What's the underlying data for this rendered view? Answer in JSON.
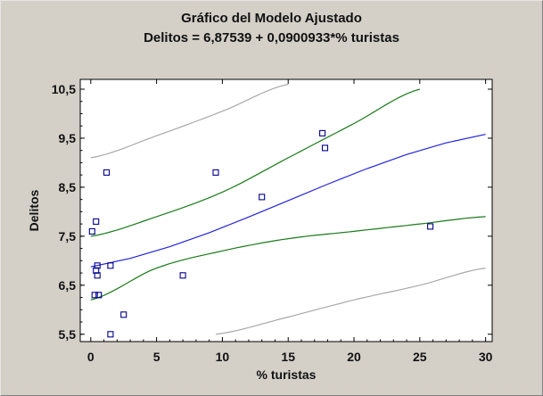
{
  "chart_data": {
    "type": "scatter",
    "title": "Gráfico del Modelo Ajustado",
    "subtitle": "Delitos = 6,87539 + 0,0900933*% turistas",
    "xlabel": "% turistas",
    "ylabel": "Delitos",
    "xlim": [
      -0.8,
      30.5
    ],
    "ylim": [
      5.35,
      10.7
    ],
    "x_ticks": [
      0,
      5,
      10,
      15,
      20,
      25,
      30
    ],
    "x_tick_labels": [
      "0",
      "5",
      "10",
      "15",
      "20",
      "25",
      "30"
    ],
    "y_ticks": [
      5.5,
      6.5,
      7.5,
      8.5,
      9.5,
      10.5
    ],
    "y_tick_labels": [
      "5,5",
      "6,5",
      "7,5",
      "8,5",
      "9,5",
      "10,5"
    ],
    "grid": false,
    "colors": {
      "points": "#00008b",
      "fit": "#2222dd",
      "confidence": "#1a7a1a",
      "prediction": "#a8a8a8",
      "background": "#d4d0c8",
      "plot_background": "#ffffff"
    },
    "points": [
      {
        "x": 0.1,
        "y": 7.6
      },
      {
        "x": 0.3,
        "y": 6.3
      },
      {
        "x": 0.4,
        "y": 7.8
      },
      {
        "x": 0.4,
        "y": 6.8
      },
      {
        "x": 0.5,
        "y": 6.7
      },
      {
        "x": 0.5,
        "y": 6.9
      },
      {
        "x": 0.6,
        "y": 6.3
      },
      {
        "x": 1.2,
        "y": 8.8
      },
      {
        "x": 1.5,
        "y": 6.9
      },
      {
        "x": 1.5,
        "y": 5.5
      },
      {
        "x": 2.5,
        "y": 5.9
      },
      {
        "x": 7.0,
        "y": 6.7
      },
      {
        "x": 9.5,
        "y": 8.8
      },
      {
        "x": 13.0,
        "y": 8.3
      },
      {
        "x": 17.6,
        "y": 9.6
      },
      {
        "x": 17.8,
        "y": 9.3
      },
      {
        "x": 25.8,
        "y": 7.7
      }
    ],
    "fitted_line": {
      "name": "fit",
      "x": [
        0,
        30
      ],
      "y": [
        6.87539,
        9.57819
      ]
    },
    "confidence_upper": {
      "x": [
        0,
        5,
        10,
        15,
        20,
        25
      ],
      "y": [
        7.5,
        7.9,
        8.4,
        9.1,
        9.8,
        10.5
      ]
    },
    "confidence_lower": {
      "x": [
        0,
        5,
        10,
        15,
        20,
        25,
        30
      ],
      "y": [
        6.2,
        6.85,
        7.2,
        7.45,
        7.6,
        7.75,
        7.9
      ]
    },
    "prediction_upper": {
      "x": [
        0,
        5,
        10,
        15
      ],
      "y": [
        9.1,
        9.55,
        10.05,
        10.6
      ]
    },
    "prediction_lower": {
      "x": [
        9.5,
        15,
        20,
        25,
        30
      ],
      "y": [
        5.5,
        5.85,
        6.2,
        6.5,
        6.85
      ]
    }
  }
}
